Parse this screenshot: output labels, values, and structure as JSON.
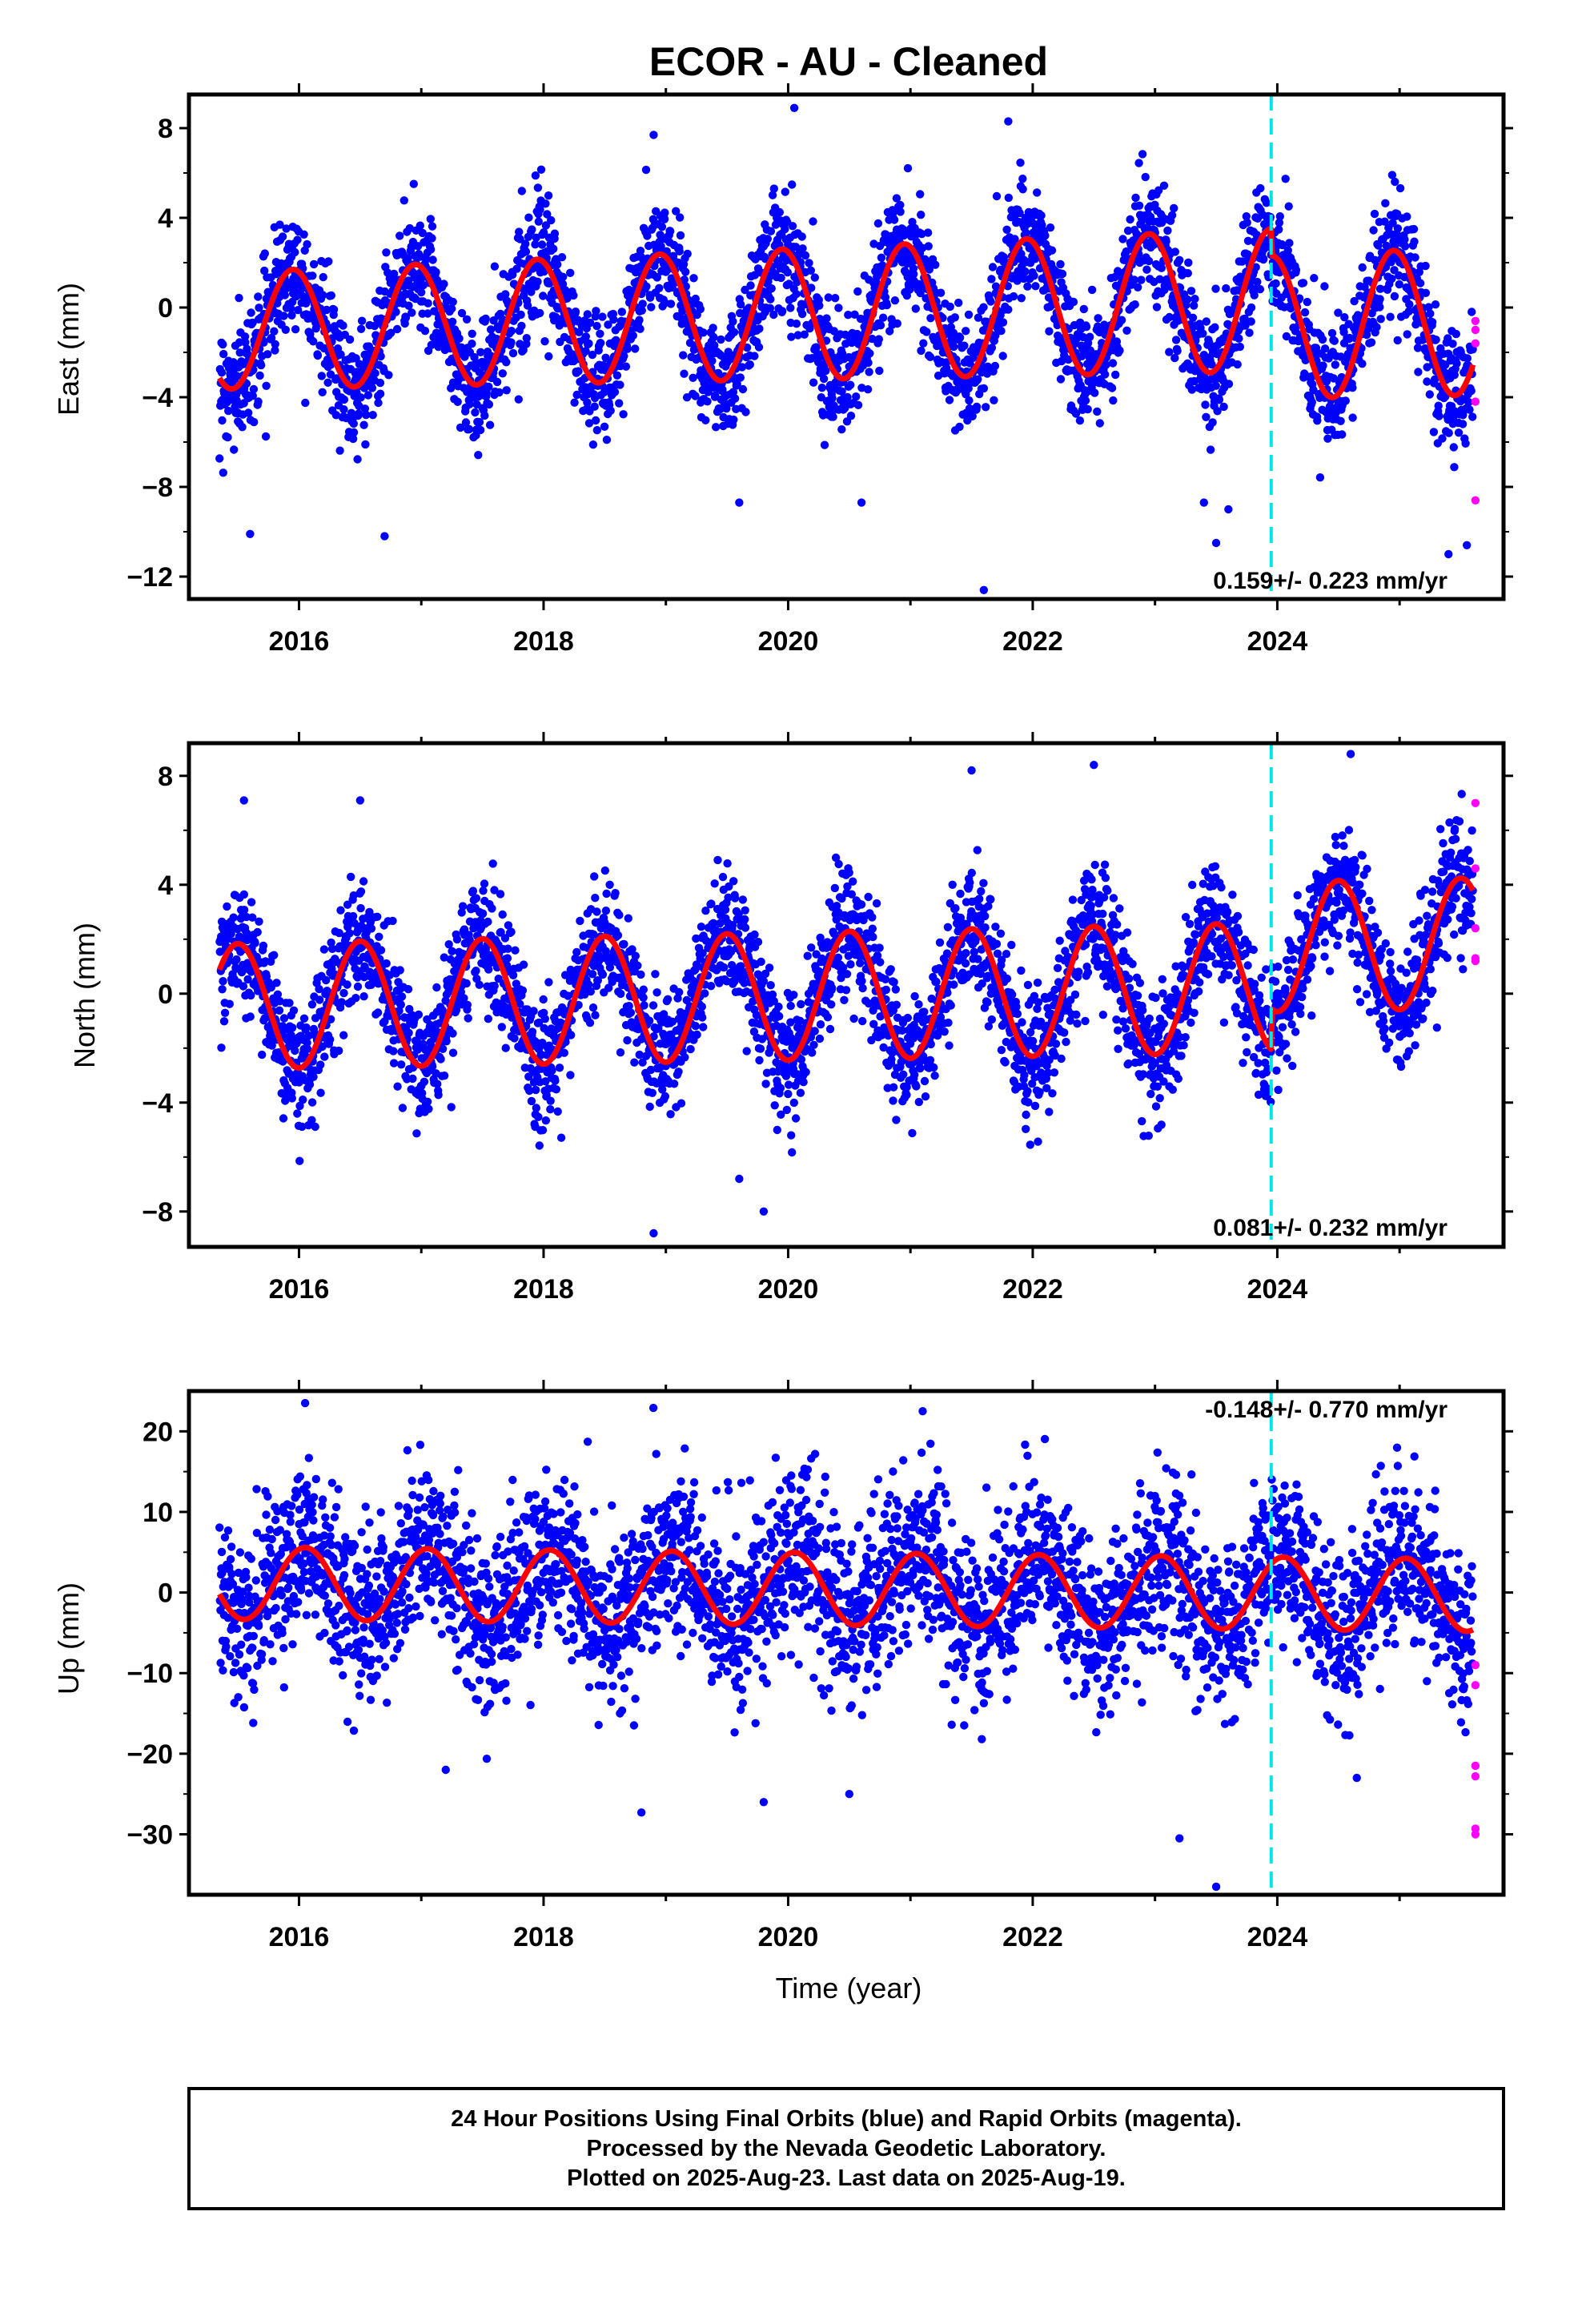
{
  "title": "ECOR  - AU - Cleaned",
  "xlabel": "Time (year)",
  "footer": [
    "24 Hour Positions Using Final Orbits (blue) and Rapid Orbits (magenta).",
    "Processed by the Nevada Geodetic Laboratory.",
    "Plotted on 2025-Aug-23. Last data on 2025-Aug-19."
  ],
  "colors": {
    "final": "#0000ff",
    "rapid": "#ff00ff",
    "model": "#ff0000",
    "event": "#00e5e5",
    "axis": "#000000"
  },
  "chart_data": [
    {
      "type": "scatter",
      "component": "East",
      "ylabel": "East (mm)",
      "rate_text": "0.159+/- 0.223 mm/yr",
      "xlim": [
        2015.1,
        2025.85
      ],
      "ylim": [
        -13,
        9.5
      ],
      "yticks": [
        -12,
        -8,
        -4,
        0,
        4,
        8
      ],
      "ytick_labels": [
        "−12",
        "−8",
        "−4",
        "0",
        "4",
        "8"
      ],
      "xticks": [
        2016,
        2018,
        2020,
        2022,
        2024
      ],
      "xtick_labels": [
        "2016",
        "2018",
        "2020",
        "2022",
        "2024"
      ],
      "event_line_x": 2023.95,
      "data_span": [
        2015.35,
        2025.6
      ],
      "model": {
        "offset": -0.3,
        "trend": 0.159,
        "amplitude_start": 2.6,
        "amplitude_end": 3.3,
        "phase_peak": 0.95,
        "step_2024": -1.2,
        "noise_sd": 1.3
      },
      "series": [
        {
          "name": "Final Orbits (blue)",
          "n_points": 3500
        },
        {
          "name": "Rapid Orbits (magenta)",
          "points": [
            [
              2025.62,
              -0.6
            ],
            [
              2025.62,
              -1.0
            ],
            [
              2025.62,
              -1.6
            ],
            [
              2025.62,
              -4.2
            ],
            [
              2025.62,
              -8.6
            ]
          ]
        }
      ],
      "outliers": [
        [
          2015.6,
          -10.1
        ],
        [
          2016.7,
          -10.2
        ],
        [
          2019.6,
          -8.7
        ],
        [
          2020.6,
          -8.7
        ],
        [
          2021.6,
          -12.6
        ],
        [
          2023.4,
          -8.7
        ],
        [
          2023.6,
          -9.0
        ],
        [
          2023.5,
          -10.5
        ],
        [
          2025.4,
          -11.0
        ],
        [
          2025.55,
          -10.6
        ],
        [
          2020.05,
          8.9
        ],
        [
          2021.8,
          8.3
        ],
        [
          2018.9,
          7.7
        ]
      ]
    },
    {
      "type": "scatter",
      "component": "North",
      "ylabel": "North (mm)",
      "rate_text": "0.081+/- 0.232 mm/yr",
      "xlim": [
        2015.1,
        2025.85
      ],
      "ylim": [
        -9.3,
        9.2
      ],
      "yticks": [
        -8,
        -4,
        0,
        4,
        8
      ],
      "ytick_labels": [
        "−8",
        "−4",
        "0",
        "4",
        "8"
      ],
      "xticks": [
        2016,
        2018,
        2020,
        2022,
        2024
      ],
      "xtick_labels": [
        "2016",
        "2018",
        "2020",
        "2022",
        "2024"
      ],
      "event_line_x": 2023.95,
      "data_span": [
        2015.35,
        2025.6
      ],
      "model": {
        "offset": -0.1,
        "trend": 0.081,
        "amplitude_start": 2.3,
        "amplitude_end": 2.4,
        "phase_peak": 0.5,
        "step_2024": 1.5,
        "noise_sd": 1.1
      },
      "series": [
        {
          "name": "Final Orbits (blue)",
          "n_points": 3500
        },
        {
          "name": "Rapid Orbits (magenta)",
          "points": [
            [
              2025.62,
              7.0
            ],
            [
              2025.62,
              4.6
            ],
            [
              2025.62,
              2.4
            ],
            [
              2025.62,
              1.2
            ],
            [
              2025.62,
              1.3
            ]
          ]
        }
      ],
      "outliers": [
        [
          2018.9,
          -8.8
        ],
        [
          2019.8,
          -8.0
        ],
        [
          2019.6,
          -6.8
        ],
        [
          2015.55,
          7.1
        ],
        [
          2016.5,
          7.1
        ],
        [
          2022.5,
          8.4
        ],
        [
          2024.6,
          8.8
        ],
        [
          2021.5,
          8.2
        ]
      ]
    },
    {
      "type": "scatter",
      "component": "Up",
      "ylabel": "Up (mm)",
      "rate_text": "-0.148+/- 0.770 mm/yr",
      "xlim": [
        2015.1,
        2025.85
      ],
      "ylim": [
        -37.5,
        25
      ],
      "yticks": [
        -30,
        -20,
        -10,
        0,
        10,
        20
      ],
      "ytick_labels": [
        "−30",
        "−20",
        "−10",
        "0",
        "10",
        "20"
      ],
      "xticks": [
        2016,
        2018,
        2020,
        2022,
        2024
      ],
      "xtick_labels": [
        "2016",
        "2018",
        "2020",
        "2022",
        "2024"
      ],
      "event_line_x": 2023.95,
      "data_span": [
        2015.35,
        2025.6
      ],
      "model": {
        "offset": 0.5,
        "trend": -0.148,
        "amplitude_start": 4.5,
        "amplitude_end": 4.5,
        "phase_peak": 0.05,
        "step_2024": 0,
        "noise_sd": 5.2
      },
      "series": [
        {
          "name": "Final Orbits (blue)",
          "n_points": 3500
        },
        {
          "name": "Rapid Orbits (magenta)",
          "points": [
            [
              2025.62,
              -9.0
            ],
            [
              2025.62,
              -11.5
            ],
            [
              2025.62,
              -21.5
            ],
            [
              2025.62,
              -22.8
            ],
            [
              2025.62,
              -29.3
            ],
            [
              2025.62,
              -30.0
            ]
          ]
        }
      ],
      "outliers": [
        [
          2016.05,
          23.5
        ],
        [
          2021.1,
          22.5
        ],
        [
          2018.8,
          -27.3
        ],
        [
          2019.8,
          -26.0
        ],
        [
          2020.5,
          -25.0
        ],
        [
          2023.2,
          -30.5
        ],
        [
          2023.5,
          -36.5
        ],
        [
          2024.65,
          -23.0
        ],
        [
          2017.2,
          -22.0
        ]
      ]
    }
  ]
}
